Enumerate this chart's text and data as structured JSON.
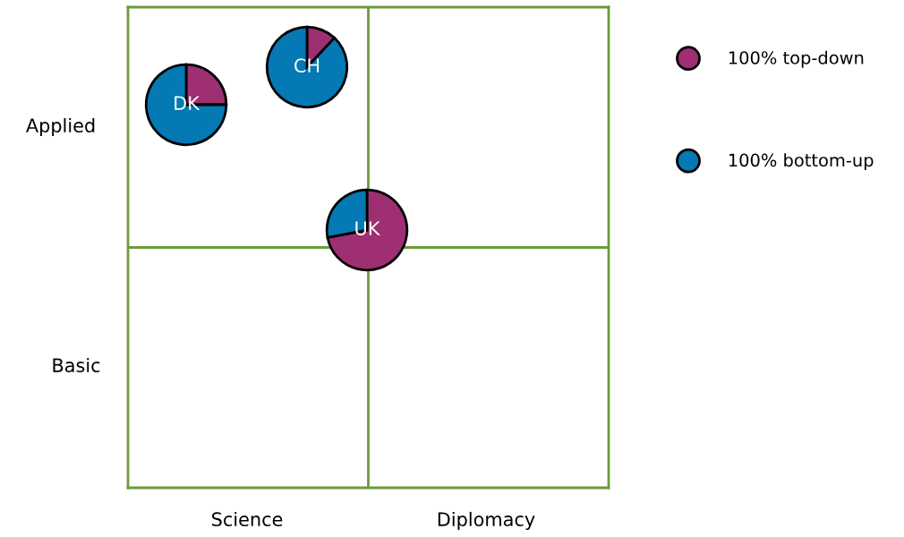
{
  "chart_data": [
    {
      "type": "other",
      "annotations": [
        "Applied",
        "Basic",
        "Science",
        "Diplomacy"
      ]
    },
    {
      "type": "pie",
      "title": "DK",
      "categories": [
        "100% top-down",
        "100% bottom-up"
      ],
      "values": [
        25,
        75
      ],
      "colors": [
        "#9e2f72",
        "#0479b4"
      ],
      "legend": "right"
    },
    {
      "type": "pie",
      "title": "CH",
      "values": [
        12,
        88
      ],
      "colors": [
        "#9e2f72",
        "#0479b4"
      ]
    },
    {
      "type": "pie",
      "title": "UK",
      "values": [
        72,
        28
      ],
      "colors": [
        "#9e2f72",
        "#0479b4"
      ]
    }
  ]
}
